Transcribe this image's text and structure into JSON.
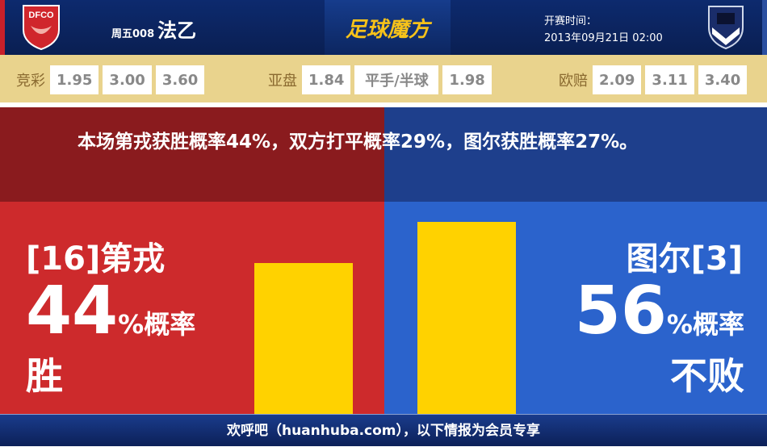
{
  "header": {
    "home_logo_text": "DFCO",
    "match_no": "周五008",
    "league": "法乙",
    "brand": "足球魔方",
    "kickoff_label": "开赛时间：",
    "kickoff_time": "2013年09月21日 02:00"
  },
  "odds": [
    {
      "label": "竞彩",
      "values": [
        "1.95",
        "3.00",
        "3.60"
      ]
    },
    {
      "label": "亚盘",
      "values": [
        "1.84",
        "平手/半球",
        "1.98"
      ]
    },
    {
      "label": "欧赔",
      "values": [
        "2.09",
        "3.11",
        "3.40"
      ]
    }
  ],
  "message": "本场第戎获胜概率44%，双方打平概率29%，图尔获胜概率27%。",
  "home": {
    "team": "[16]第戎",
    "percent": "44",
    "unit": "%概率",
    "result": "胜",
    "value": 44,
    "color": "#cd2a2c"
  },
  "away": {
    "team": "图尔[3]",
    "percent": "56",
    "unit": "%概率",
    "result": "不败",
    "value": 56,
    "color": "#2b63cc"
  },
  "bar_color": "#ffd200",
  "footer": "欢呼吧（huanhuba.com），以下情报为会员专享"
}
